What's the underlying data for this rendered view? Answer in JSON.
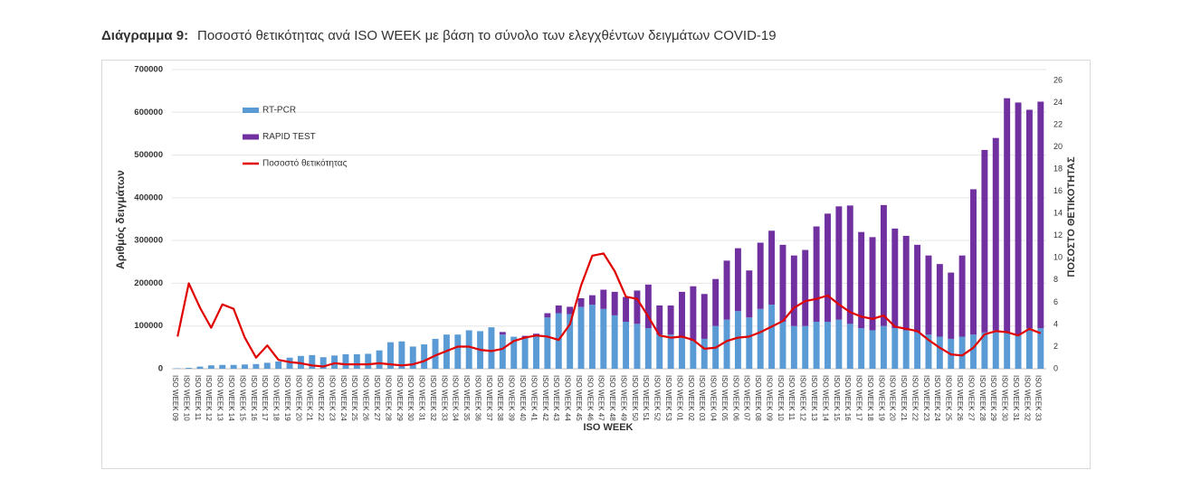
{
  "chart_data": {
    "type": "bar",
    "stacked": true,
    "title": "Διάγραμμα 9:",
    "subtitle": "Ποσοστό θετικότητας ανά ISO WEEK με βάση το σύνολο των ελεγχθέντων δειγμάτων COVID-19",
    "x_label": "ISO WEEK",
    "y_label": "Αριθμός δειγμάτων",
    "y2_label": "ΠΟΣΟΣΤΟ ΘΕΤΙΚΟΤΗΤΑΣ",
    "categories": [
      "ISO WEEK 09",
      "ISO WEEK 10",
      "ISO WEEK 11",
      "ISO WEEK 12",
      "ISO WEEK 13",
      "ISO WEEK 14",
      "ISO WEEK 15",
      "ISO WEEK 16",
      "ISO WEEK 17",
      "ISO WEEK 18",
      "ISO WEEK 19",
      "ISO WEEK 20",
      "ISO WEEK 21",
      "ISO WEEK 22",
      "ISO WEEK 23",
      "ISO WEEK 24",
      "ISO WEEK 25",
      "ISO WEEK 26",
      "ISO WEEK 27",
      "ISO WEEK 28",
      "ISO WEEK 29",
      "ISO WEEK 30",
      "ISO WEEK 31",
      "ISO WEEK 32",
      "ISO WEEK 33",
      "ISO WEEK 34",
      "ISO WEEK 35",
      "ISO WEEK 36",
      "ISO WEEK 37",
      "ISO WEEK 38",
      "ISO WEEK 39",
      "ISO WEEK 40",
      "ISO WEEK 41",
      "ISO WEEK 42",
      "ISO WEEK 43",
      "ISO WEEK 44",
      "ISO WEEK 45",
      "ISO WEEK 46",
      "ISO WEEK 47",
      "ISO WEEK 48",
      "ISO WEEK 49",
      "ISO WEEK 50",
      "ISO WEEK 51",
      "ISO WEEK 52",
      "ISO WEEK 53",
      "ISO WEEK 01",
      "ISO WEEK 02",
      "ISO WEEK 03",
      "ISO WEEK 04",
      "ISO WEEK 05",
      "ISO WEEK 06",
      "ISO WEEK 07",
      "ISO WEEK 08",
      "ISO WEEK 09",
      "ISO WEEK 10",
      "ISO WEEK 11",
      "ISO WEEK 12",
      "ISO WEEK 13",
      "ISO WEEK 14",
      "ISO WEEK 15",
      "ISO WEEK 16",
      "ISO WEEK 17",
      "ISO WEEK 18",
      "ISO WEEK 19",
      "ISO WEEK 20",
      "ISO WEEK 21",
      "ISO WEEK 22",
      "ISO WEEK 23",
      "ISO WEEK 24",
      "ISO WEEK 25",
      "ISO WEEK 26",
      "ISO WEEK 27",
      "ISO WEEK 28",
      "ISO WEEK 29",
      "ISO WEEK 30",
      "ISO WEEK 31",
      "ISO WEEK 32",
      "ISO WEEK 33"
    ],
    "series": [
      {
        "name": "RT-PCR",
        "color": "#5b9bd5",
        "type": "bar",
        "values": [
          1000,
          2000,
          5000,
          8000,
          9000,
          9000,
          10000,
          11000,
          14000,
          17000,
          26000,
          30000,
          32000,
          27000,
          31000,
          34000,
          34000,
          35000,
          43000,
          62000,
          64000,
          52000,
          57000,
          70000,
          80000,
          80000,
          90000,
          88000,
          97000,
          80000,
          75000,
          72000,
          78000,
          120000,
          130000,
          128000,
          145000,
          150000,
          140000,
          125000,
          110000,
          105000,
          95000,
          80000,
          80000,
          75000,
          65000,
          70000,
          100000,
          115000,
          135000,
          120000,
          140000,
          150000,
          110000,
          100000,
          100000,
          110000,
          110000,
          115000,
          105000,
          95000,
          90000,
          100000,
          95000,
          90000,
          85000,
          80000,
          75000,
          70000,
          75000,
          80000,
          85000,
          90000,
          85000,
          80000,
          95000,
          95000
        ]
      },
      {
        "name": "RAPID TEST",
        "color": "#7030a0",
        "type": "bar",
        "values": [
          0,
          0,
          0,
          0,
          0,
          0,
          0,
          0,
          0,
          0,
          0,
          0,
          0,
          0,
          0,
          0,
          0,
          0,
          0,
          0,
          0,
          0,
          0,
          0,
          0,
          0,
          0,
          0,
          0,
          6000,
          0,
          5000,
          4000,
          10000,
          18000,
          17000,
          20000,
          22000,
          45000,
          55000,
          58000,
          78000,
          102000,
          68000,
          68000,
          105000,
          128000,
          105000,
          110000,
          138000,
          147000,
          110000,
          155000,
          173000,
          180000,
          165000,
          178000,
          223000,
          253000,
          265000,
          277000,
          225000,
          218000,
          283000,
          233000,
          221000,
          205000,
          185000,
          170000,
          155000,
          190000,
          340000,
          427000,
          450000,
          548000,
          543000,
          511000,
          530000
        ]
      },
      {
        "name": "Ποσοστό θετικότητας",
        "color": "#e00000",
        "type": "line",
        "axis": "y2",
        "values": [
          2.9,
          7.7,
          5.5,
          3.7,
          5.8,
          5.4,
          2.8,
          1.0,
          2.1,
          0.8,
          0.6,
          0.5,
          0.3,
          0.2,
          0.5,
          0.4,
          0.4,
          0.4,
          0.5,
          0.4,
          0.3,
          0.4,
          0.7,
          1.2,
          1.6,
          2.0,
          2.0,
          1.7,
          1.6,
          1.8,
          2.5,
          2.8,
          3.0,
          2.9,
          2.6,
          4.0,
          7.5,
          10.2,
          10.4,
          8.8,
          6.5,
          6.3,
          4.7,
          3.0,
          2.8,
          2.9,
          2.6,
          1.8,
          1.9,
          2.5,
          2.8,
          2.9,
          3.3,
          3.8,
          4.3,
          5.5,
          6.1,
          6.3,
          6.6,
          5.8,
          5.1,
          4.7,
          4.5,
          4.8,
          3.8,
          3.6,
          3.4,
          2.6,
          1.9,
          1.3,
          1.2,
          1.9,
          3.1,
          3.4,
          3.3,
          3.0,
          3.6,
          3.2
        ]
      }
    ],
    "ylim": [
      0,
      700000
    ],
    "yticks": [
      0,
      100000,
      200000,
      300000,
      400000,
      500000,
      600000,
      700000
    ],
    "y2lim": [
      0,
      26
    ],
    "y2ticks": [
      0,
      2,
      4,
      6,
      8,
      10,
      12,
      14,
      16,
      18,
      20,
      22,
      24,
      26
    ],
    "grid": true,
    "legend": "upper left"
  }
}
